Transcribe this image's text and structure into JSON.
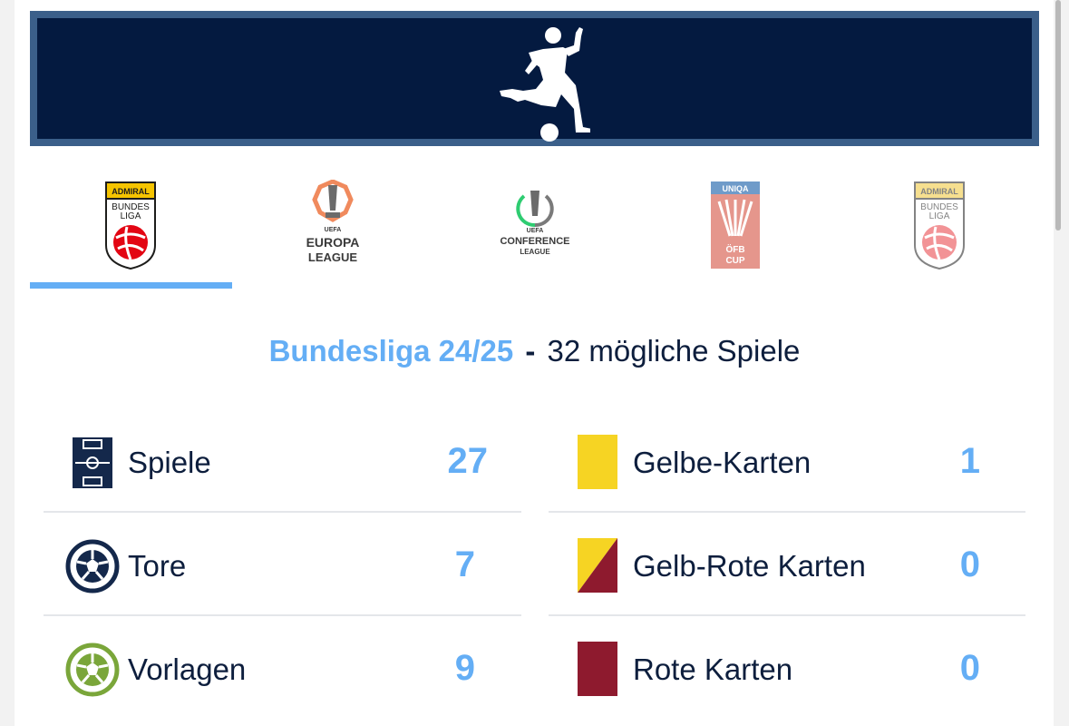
{
  "tabs": [
    {
      "name": "ADMIRAL BUNDESLIGA",
      "lines": [
        "ADMIRAL",
        "BUNDES",
        "LIGA"
      ],
      "active": true
    },
    {
      "name": "UEFA EUROPA LEAGUE",
      "lines": [
        "UEFA",
        "EUROPA",
        "LEAGUE"
      ],
      "active": false
    },
    {
      "name": "UEFA CONFERENCE LEAGUE",
      "lines": [
        "UEFA",
        "CONFERENCE",
        "LEAGUE"
      ],
      "active": false
    },
    {
      "name": "UNIQA ÖFB CUP",
      "lines": [
        "UNIQA",
        "ÖFB",
        "CUP"
      ],
      "active": false
    },
    {
      "name": "ADMIRAL BUNDESLIGA",
      "lines": [
        "ADMIRAL",
        "BUNDES",
        "LIGA"
      ],
      "active": false
    }
  ],
  "headline": {
    "competition": "Bundesliga 24/25",
    "separator": "-",
    "possible_games": "32 mögliche Spiele"
  },
  "stats_left": [
    {
      "icon": "pitch-icon",
      "label": "Spiele",
      "value": "27"
    },
    {
      "icon": "ball-icon",
      "label": "Tore",
      "value": "7"
    },
    {
      "icon": "assist-ball-icon",
      "label": "Vorlagen",
      "value": "9"
    }
  ],
  "stats_right": [
    {
      "icon": "yellow-card-icon",
      "label": "Gelbe-Karten",
      "value": "1"
    },
    {
      "icon": "yellow-red-card-icon",
      "label": "Gelb-Rote Karten",
      "value": "0"
    },
    {
      "icon": "red-card-icon",
      "label": "Rote Karten",
      "value": "0"
    }
  ],
  "colors": {
    "navy": "#041a40",
    "hero_border": "#3b5f8a",
    "accent_blue": "#64aef5",
    "yellow": "#f6d423",
    "red": "#8e1a2e",
    "green": "#7aa63a"
  }
}
